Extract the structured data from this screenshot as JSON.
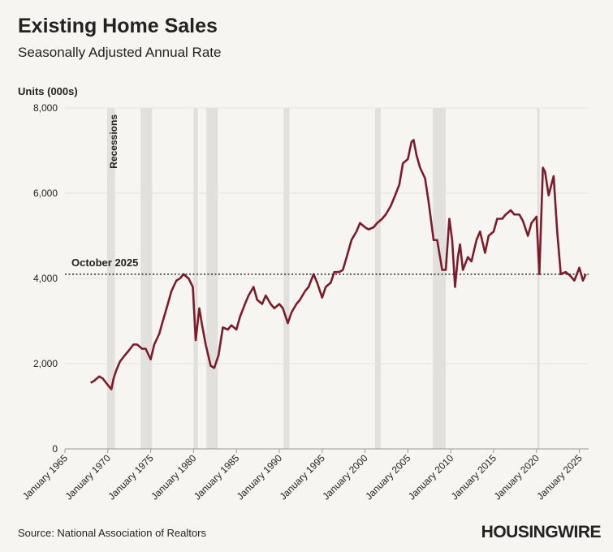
{
  "chart_data": {
    "type": "line",
    "title": "Existing Home Sales",
    "subtitle": "Seasonally Adjusted Annual Rate",
    "y_label": "Units (000s)",
    "source": "Source: National Association of Realtors",
    "brand": "HOUSINGWIRE",
    "color": "#7b1c2c",
    "grid": true,
    "ylim": [
      0,
      8000
    ],
    "yticks": [
      0,
      {
        "value": 2000,
        "label": "2,000"
      },
      {
        "value": 4000,
        "label": "4,000"
      },
      {
        "value": 6000,
        "label": "6,000"
      },
      {
        "value": 8000,
        "label": "8,000"
      }
    ],
    "xlim": [
      "1965-01",
      "2026-02"
    ],
    "xticks": [
      {
        "value": "1965-01",
        "label": "January 1965"
      },
      {
        "value": "1970-01",
        "label": "January 1970"
      },
      {
        "value": "1975-01",
        "label": "January 1975"
      },
      {
        "value": "1980-01",
        "label": "January 1980"
      },
      {
        "value": "1985-01",
        "label": "January 1985"
      },
      {
        "value": "1990-01",
        "label": "January 1990"
      },
      {
        "value": "1995-01",
        "label": "January 1995"
      },
      {
        "value": "2000-01",
        "label": "January 2000"
      },
      {
        "value": "2005-01",
        "label": "January 2005"
      },
      {
        "value": "2010-01",
        "label": "January 2010"
      },
      {
        "value": "2015-01",
        "label": "January 2015"
      },
      {
        "value": "2020-01",
        "label": "January 2020"
      },
      {
        "value": "2025-01",
        "label": "January 2025"
      }
    ],
    "recessions_label": "Recessions",
    "recessions": [
      [
        "1969-12",
        "1970-11"
      ],
      [
        "1973-11",
        "1975-03"
      ],
      [
        "1980-01",
        "1980-07"
      ],
      [
        "1981-07",
        "1982-11"
      ],
      [
        "1990-07",
        "1991-03"
      ],
      [
        "2001-03",
        "2001-11"
      ],
      [
        "2007-12",
        "2009-06"
      ],
      [
        "2020-02",
        "2020-04"
      ]
    ],
    "reference_line": {
      "label": "October 2025",
      "value": 4100
    },
    "x": [
      "1968-01",
      "1968-06",
      "1969-01",
      "1969-06",
      "1970-01",
      "1970-06",
      "1970-09",
      "1971-01",
      "1971-06",
      "1972-01",
      "1972-06",
      "1973-01",
      "1973-06",
      "1974-01",
      "1974-06",
      "1975-01",
      "1975-06",
      "1976-01",
      "1976-06",
      "1977-01",
      "1977-06",
      "1978-01",
      "1978-06",
      "1978-11",
      "1979-06",
      "1979-12",
      "1980-04",
      "1980-09",
      "1981-01",
      "1981-06",
      "1982-01",
      "1982-06",
      "1982-12",
      "1983-06",
      "1984-01",
      "1984-06",
      "1985-01",
      "1985-06",
      "1986-01",
      "1986-06",
      "1987-01",
      "1987-06",
      "1988-01",
      "1988-06",
      "1989-01",
      "1989-06",
      "1990-01",
      "1990-06",
      "1991-01",
      "1991-06",
      "1992-01",
      "1992-06",
      "1993-01",
      "1993-06",
      "1994-01",
      "1994-06",
      "1995-01",
      "1995-06",
      "1996-01",
      "1996-06",
      "1997-01",
      "1997-06",
      "1998-01",
      "1998-06",
      "1999-01",
      "1999-06",
      "2000-01",
      "2000-06",
      "2001-01",
      "2001-06",
      "2002-01",
      "2002-06",
      "2003-01",
      "2003-06",
      "2004-01",
      "2004-06",
      "2005-01",
      "2005-06",
      "2005-09",
      "2006-01",
      "2006-06",
      "2007-01",
      "2007-06",
      "2008-01",
      "2008-06",
      "2009-01",
      "2009-06",
      "2009-11",
      "2010-03",
      "2010-07",
      "2010-11",
      "2011-02",
      "2011-06",
      "2012-01",
      "2012-06",
      "2013-01",
      "2013-06",
      "2014-01",
      "2014-06",
      "2015-01",
      "2015-06",
      "2016-01",
      "2016-06",
      "2017-01",
      "2017-06",
      "2018-01",
      "2018-06",
      "2019-01",
      "2019-06",
      "2020-01",
      "2020-05",
      "2020-10",
      "2021-01",
      "2021-06",
      "2022-01",
      "2022-06",
      "2022-11",
      "2023-06",
      "2024-01",
      "2024-06",
      "2025-01",
      "2025-06",
      "2025-10"
    ],
    "values": [
      1550,
      1600,
      1700,
      1650,
      1500,
      1400,
      1650,
      1850,
      2050,
      2200,
      2300,
      2450,
      2450,
      2350,
      2350,
      2100,
      2450,
      2700,
      3000,
      3400,
      3700,
      3950,
      4000,
      4100,
      4000,
      3800,
      2550,
      3300,
      2900,
      2450,
      1950,
      1900,
      2200,
      2850,
      2800,
      2900,
      2800,
      3100,
      3400,
      3600,
      3800,
      3500,
      3400,
      3600,
      3400,
      3300,
      3400,
      3300,
      2950,
      3200,
      3400,
      3500,
      3700,
      3800,
      4100,
      3900,
      3550,
      3800,
      3900,
      4150,
      4150,
      4200,
      4600,
      4900,
      5100,
      5300,
      5200,
      5150,
      5200,
      5300,
      5400,
      5500,
      5700,
      5900,
      6200,
      6700,
      6800,
      7200,
      7250,
      6900,
      6600,
      6350,
      5800,
      4900,
      4900,
      4200,
      4200,
      5400,
      4900,
      3800,
      4500,
      4800,
      4200,
      4500,
      4400,
      4900,
      5100,
      4600,
      5000,
      5100,
      5400,
      5400,
      5500,
      5600,
      5500,
      5500,
      5350,
      5000,
      5300,
      5450,
      4100,
      6600,
      6500,
      5950,
      6400,
      5100,
      4100,
      4150,
      4050,
      3950,
      4250,
      3950,
      4100
    ]
  }
}
